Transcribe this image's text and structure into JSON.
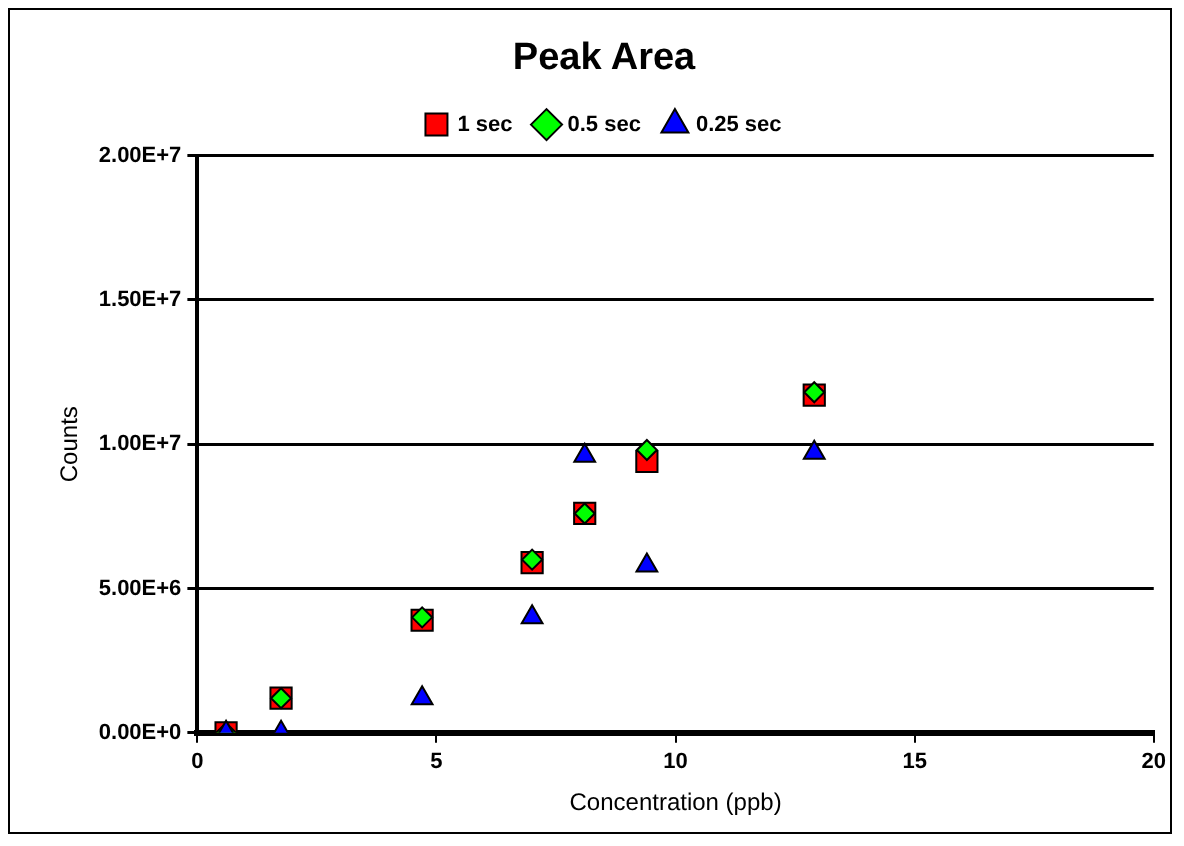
{
  "chart_data": {
    "type": "scatter",
    "title": "Peak Area",
    "xlabel": "Concentration (ppb)",
    "ylabel": "Counts",
    "xlim": [
      0,
      20
    ],
    "xticks": [
      0,
      5,
      10,
      15,
      20
    ],
    "ylim": [
      0,
      20000000
    ],
    "yticks": [
      {
        "value": 0,
        "label": "0.00E+0"
      },
      {
        "value": 5000000,
        "label": "5.00E+6"
      },
      {
        "value": 10000000,
        "label": "1.00E+7"
      },
      {
        "value": 15000000,
        "label": "1.50E+7"
      },
      {
        "value": 20000000,
        "label": "2.00E+7"
      }
    ],
    "grid": "y",
    "legend": "top",
    "series": [
      {
        "name": "1 sec",
        "color": "#ff0000",
        "marker": "square",
        "x": [
          0.6,
          1.75,
          4.7,
          7.0,
          8.1,
          9.4,
          12.9
        ],
        "values": [
          0,
          1200000,
          3900000,
          5900000,
          7600000,
          9400000,
          11700000
        ]
      },
      {
        "name": "0.5 sec",
        "color": "#00ff00",
        "marker": "diamond",
        "x": [
          0.6,
          1.75,
          4.7,
          7.0,
          8.1,
          9.4,
          12.9
        ],
        "values": [
          0,
          1200000,
          4000000,
          6000000,
          7600000,
          9800000,
          11800000
        ]
      },
      {
        "name": "0.25 sec",
        "color": "#0000ff",
        "marker": "triangle",
        "x": [
          0.6,
          1.75,
          4.7,
          7.0,
          8.1,
          9.4,
          12.9
        ],
        "values": [
          0,
          0,
          1200000,
          4000000,
          9600000,
          5800000,
          9700000
        ]
      }
    ]
  }
}
